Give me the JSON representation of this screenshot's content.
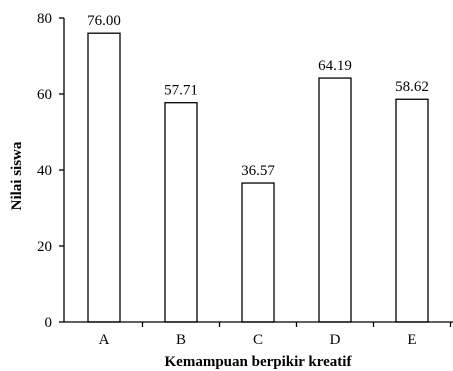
{
  "chart_data": {
    "type": "bar",
    "categories": [
      "A",
      "B",
      "C",
      "D",
      "E"
    ],
    "values": [
      76.0,
      57.71,
      36.57,
      64.19,
      58.62
    ],
    "data_labels": [
      "76.00",
      "57.71",
      "36.57",
      "64.19",
      "58.62"
    ],
    "title": "",
    "xlabel": "Kemampuan berpikir kreatif",
    "ylabel": "Nilai siswa",
    "ylim": [
      0,
      80
    ],
    "yticks": [
      0,
      20,
      40,
      60,
      80
    ],
    "ytick_labels": [
      "0",
      "20",
      "40",
      "60",
      "80"
    ],
    "grid": false,
    "legend": "none",
    "colors": {
      "bar_fill": "#ffffff",
      "bar_stroke": "#000000",
      "axis": "#000000"
    }
  }
}
